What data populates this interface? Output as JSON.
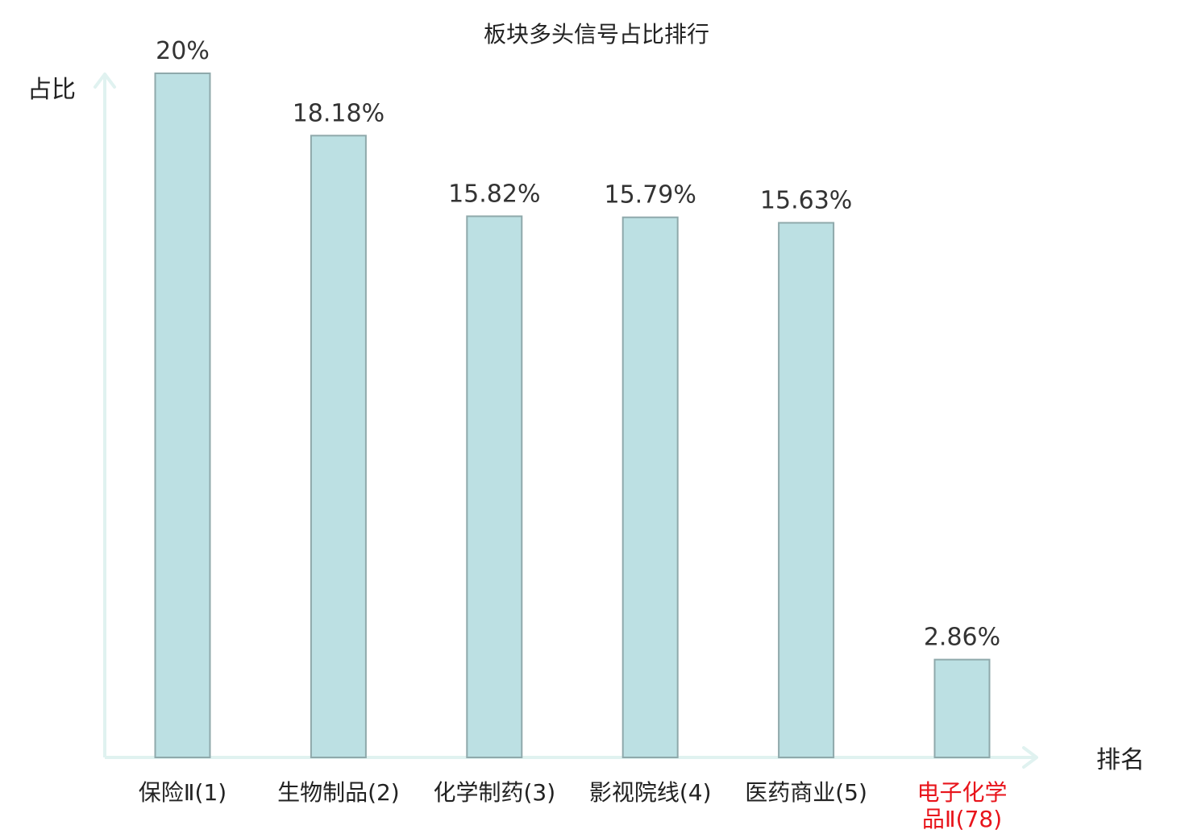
{
  "chart_data": {
    "type": "bar",
    "title": "板块多头信号占比排行",
    "ylabel": "占比",
    "xlabel": "排名",
    "categories": [
      [
        "保险Ⅱ(1)"
      ],
      [
        "生物制品(2)"
      ],
      [
        "化学制药(3)"
      ],
      [
        "影视院线(4)"
      ],
      [
        "医药商业(5)"
      ],
      [
        "电子化学",
        "品Ⅱ(78)"
      ]
    ],
    "values": [
      20,
      18.18,
      15.82,
      15.79,
      15.63,
      2.86
    ],
    "value_labels": [
      "20%",
      "18.18%",
      "15.82%",
      "15.79%",
      "15.63%",
      "2.86%"
    ],
    "highlight_index": 5,
    "ylim": [
      0,
      20
    ],
    "grid": false,
    "colors": {
      "bar_fill": "#bce0e3",
      "bar_stroke": "#8fa9ab",
      "axis": "#e0f2f0",
      "highlight_label": "#e8141b",
      "label": "#222222"
    }
  }
}
